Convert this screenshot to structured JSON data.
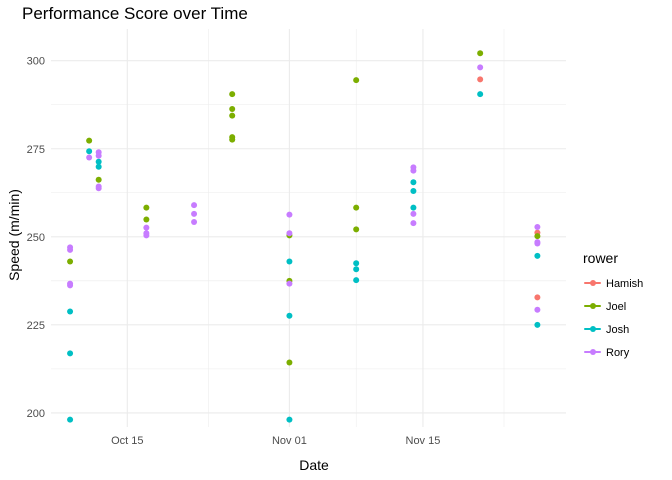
{
  "chart_data": {
    "type": "scatter",
    "title": "Performance Score over Time",
    "xlabel": "Date",
    "ylabel": "Speed (m/min)",
    "x_axis_type": "date",
    "x_ticks": [
      {
        "value": "2023-10-15",
        "label": "Oct 15"
      },
      {
        "value": "2023-11-01",
        "label": "Nov 01"
      },
      {
        "value": "2023-11-15",
        "label": "Nov 15"
      }
    ],
    "y_ticks": [
      200,
      225,
      250,
      275,
      300
    ],
    "xlim": [
      "2023-10-07",
      "2023-11-30"
    ],
    "ylim": [
      196,
      309
    ],
    "grid": true,
    "legend": {
      "title": "rower",
      "position": "right"
    },
    "series": [
      {
        "name": "Hamish",
        "color": "#F8766D",
        "points": [
          {
            "x": "2023-11-21",
            "y": 294.7
          },
          {
            "x": "2023-11-27",
            "y": 251.2
          },
          {
            "x": "2023-11-27",
            "y": 232.8
          }
        ]
      },
      {
        "name": "Joel",
        "color": "#7CAE00",
        "points": [
          {
            "x": "2023-10-09",
            "y": 243.0
          },
          {
            "x": "2023-10-11",
            "y": 277.3
          },
          {
            "x": "2023-10-12",
            "y": 266.2
          },
          {
            "x": "2023-10-17",
            "y": 258.3
          },
          {
            "x": "2023-10-17",
            "y": 254.9
          },
          {
            "x": "2023-10-26",
            "y": 290.5
          },
          {
            "x": "2023-10-26",
            "y": 286.3
          },
          {
            "x": "2023-10-26",
            "y": 284.4
          },
          {
            "x": "2023-10-26",
            "y": 278.3
          },
          {
            "x": "2023-10-26",
            "y": 277.6
          },
          {
            "x": "2023-11-01",
            "y": 250.4
          },
          {
            "x": "2023-11-01",
            "y": 237.5
          },
          {
            "x": "2023-11-01",
            "y": 214.3
          },
          {
            "x": "2023-11-08",
            "y": 294.5
          },
          {
            "x": "2023-11-08",
            "y": 258.3
          },
          {
            "x": "2023-11-08",
            "y": 252.1
          },
          {
            "x": "2023-11-21",
            "y": 302.1
          },
          {
            "x": "2023-11-27",
            "y": 250.2
          }
        ]
      },
      {
        "name": "Josh",
        "color": "#00BFC4",
        "points": [
          {
            "x": "2023-10-09",
            "y": 228.8
          },
          {
            "x": "2023-10-09",
            "y": 216.9
          },
          {
            "x": "2023-10-09",
            "y": 198.1
          },
          {
            "x": "2023-10-11",
            "y": 274.3
          },
          {
            "x": "2023-10-12",
            "y": 271.3
          },
          {
            "x": "2023-10-12",
            "y": 269.9
          },
          {
            "x": "2023-11-01",
            "y": 243.0
          },
          {
            "x": "2023-11-01",
            "y": 227.6
          },
          {
            "x": "2023-11-01",
            "y": 198.1
          },
          {
            "x": "2023-11-08",
            "y": 242.5
          },
          {
            "x": "2023-11-08",
            "y": 240.8
          },
          {
            "x": "2023-11-08",
            "y": 237.7
          },
          {
            "x": "2023-11-14",
            "y": 265.5
          },
          {
            "x": "2023-11-14",
            "y": 263.0
          },
          {
            "x": "2023-11-14",
            "y": 258.3
          },
          {
            "x": "2023-11-21",
            "y": 290.5
          },
          {
            "x": "2023-11-27",
            "y": 244.6
          },
          {
            "x": "2023-11-27",
            "y": 225.0
          }
        ]
      },
      {
        "name": "Rory",
        "color": "#C77CFF",
        "points": [
          {
            "x": "2023-10-09",
            "y": 247.0
          },
          {
            "x": "2023-10-09",
            "y": 246.3
          },
          {
            "x": "2023-10-09",
            "y": 236.7
          },
          {
            "x": "2023-10-09",
            "y": 236.2
          },
          {
            "x": "2023-10-11",
            "y": 272.5
          },
          {
            "x": "2023-10-12",
            "y": 274.0
          },
          {
            "x": "2023-10-12",
            "y": 273.0
          },
          {
            "x": "2023-10-12",
            "y": 264.3
          },
          {
            "x": "2023-10-12",
            "y": 263.8
          },
          {
            "x": "2023-10-17",
            "y": 252.6
          },
          {
            "x": "2023-10-17",
            "y": 251.0
          },
          {
            "x": "2023-10-17",
            "y": 250.4
          },
          {
            "x": "2023-10-22",
            "y": 259.0
          },
          {
            "x": "2023-10-22",
            "y": 256.5
          },
          {
            "x": "2023-10-22",
            "y": 254.2
          },
          {
            "x": "2023-11-01",
            "y": 256.3
          },
          {
            "x": "2023-11-01",
            "y": 251.0
          },
          {
            "x": "2023-11-01",
            "y": 236.7
          },
          {
            "x": "2023-11-14",
            "y": 269.7
          },
          {
            "x": "2023-11-14",
            "y": 268.8
          },
          {
            "x": "2023-11-14",
            "y": 256.5
          },
          {
            "x": "2023-11-14",
            "y": 253.9
          },
          {
            "x": "2023-11-21",
            "y": 298.1
          },
          {
            "x": "2023-11-27",
            "y": 252.8
          },
          {
            "x": "2023-11-27",
            "y": 248.5
          },
          {
            "x": "2023-11-27",
            "y": 248.1
          },
          {
            "x": "2023-11-27",
            "y": 229.3
          }
        ]
      }
    ]
  }
}
